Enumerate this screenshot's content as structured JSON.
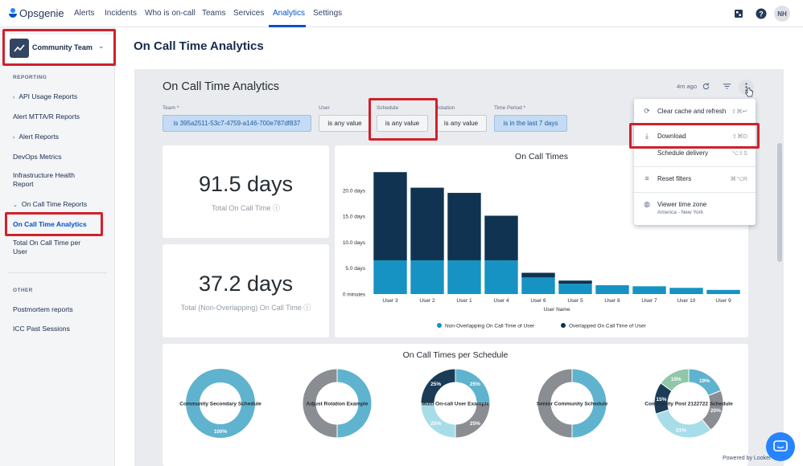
{
  "topnav": {
    "logo": "Opsgenie",
    "links": [
      "Alerts",
      "Incidents",
      "Who is on-call",
      "Teams",
      "Services",
      "Analytics",
      "Settings"
    ],
    "active": "Analytics",
    "avatar_initials": "NH",
    "icons": [
      "apps-icon",
      "help-icon"
    ]
  },
  "sidebar": {
    "team": "Community Team",
    "reporting_title": "REPORTING",
    "items": [
      "API Usage Reports",
      "Alert MTTA/R Reports",
      "Alert Reports",
      "DevOps Metrics",
      "Infrastructure Health Report",
      "On Call Time Reports",
      "On Call Time Analytics",
      "Total On Call Time per User"
    ],
    "other_title": "OTHER",
    "other_items": [
      "Postmortem reports",
      "ICC Past Sessions"
    ]
  },
  "page": {
    "title": "On Call Time Analytics"
  },
  "dashboard": {
    "title": "On Call Time Analytics",
    "updated": "4m ago",
    "filters": [
      {
        "label": "Team *",
        "value": "is 395a2511-53c7-4759-a146-700e787df837"
      },
      {
        "label": "User",
        "value": "is any value"
      },
      {
        "label": "Schedule",
        "value": "is any value"
      },
      {
        "label": "Rotation",
        "value": "is any value"
      },
      {
        "label": "Time Period *",
        "value": "is in the last 7 days"
      }
    ],
    "total": {
      "value": "91.5 days",
      "label": "Total On Call Time"
    },
    "non_overlap": {
      "value": "37.2 days",
      "label": "Total (Non-Overlapping) On Call Time"
    }
  },
  "menu": {
    "items": [
      {
        "label": "Clear cache and refresh",
        "shortcut": "⇧⌘↵"
      },
      {
        "label": "Download",
        "shortcut": "⇧⌘D"
      },
      {
        "label": "Schedule delivery",
        "shortcut": "⌥⇧S"
      },
      {
        "label": "Reset filters",
        "shortcut": "⌘⌥R"
      },
      {
        "label": "Viewer time zone",
        "sub": "America - New York"
      }
    ]
  },
  "colors": {
    "light": "#1693c2",
    "dark": "#0f3351",
    "accent": "#0052cc",
    "highlight": "#d0212c"
  },
  "chart_data": [
    {
      "type": "bar",
      "title": "On Call Times",
      "xlabel": "User Name",
      "ylabel": "",
      "categories": [
        "User 3",
        "User 2",
        "User 1",
        "User 4",
        "User 6",
        "User 5",
        "User 8",
        "User 7",
        "User 10",
        "User 9"
      ],
      "y_ticks": [
        "0 minutes",
        "5.0 days",
        "10.0 days",
        "15.0 days",
        "20.0 days"
      ],
      "ylim": [
        0,
        24
      ],
      "stacked": true,
      "series": [
        {
          "name": "Non-Overlapping On Call Time of User",
          "color": "#1693c2",
          "values": [
            6.5,
            6.5,
            6.5,
            6.5,
            3.2,
            2.0,
            1.7,
            1.5,
            1.2,
            0.8
          ]
        },
        {
          "name": "Overlapped On Call Time of User",
          "color": "#0f3351",
          "values": [
            17.0,
            14.0,
            13.0,
            8.6,
            0.9,
            0.6,
            0,
            0,
            0,
            0
          ]
        }
      ],
      "legend": "bottom"
    },
    {
      "type": "pie",
      "title": "On Call Times per Schedule",
      "donuts": [
        {
          "name": "Community Secondary Schedule",
          "slices": [
            {
              "label": "100%",
              "value": 100,
              "color": "#5fb3cf"
            }
          ]
        },
        {
          "name": "Adjust Rotation Example",
          "slices": [
            {
              "label": "",
              "value": 50,
              "color": "#5fb3cf"
            },
            {
              "label": "",
              "value": 50,
              "color": "#8a8d91"
            }
          ]
        },
        {
          "name": "Multi On-call User Example",
          "slices": [
            {
              "label": "25%",
              "value": 25,
              "color": "#5fb3cf"
            },
            {
              "label": "25%",
              "value": 25,
              "color": "#8a8d91"
            },
            {
              "label": "25%",
              "value": 25,
              "color": "#a7dde8"
            },
            {
              "label": "25%",
              "value": 25,
              "color": "#1b3c57"
            }
          ]
        },
        {
          "name": "Senior Community Schedule",
          "slices": [
            {
              "label": "",
              "value": 50,
              "color": "#5fb3cf"
            },
            {
              "label": "",
              "value": 50,
              "color": "#8a8d91"
            }
          ]
        },
        {
          "name": "Community Post 2122722 Schedule",
          "slices": [
            {
              "label": "19%",
              "value": 19,
              "color": "#5fb3cf"
            },
            {
              "label": "20%",
              "value": 20,
              "color": "#8a8d91"
            },
            {
              "label": "31%",
              "value": 31,
              "color": "#a7dde8"
            },
            {
              "label": "15%",
              "value": 15,
              "color": "#1b3c57"
            },
            {
              "label": "15%",
              "value": 15,
              "color": "#8fc7a8"
            }
          ]
        }
      ]
    }
  ],
  "footer": {
    "powered_by": "Powered by  Looker"
  }
}
